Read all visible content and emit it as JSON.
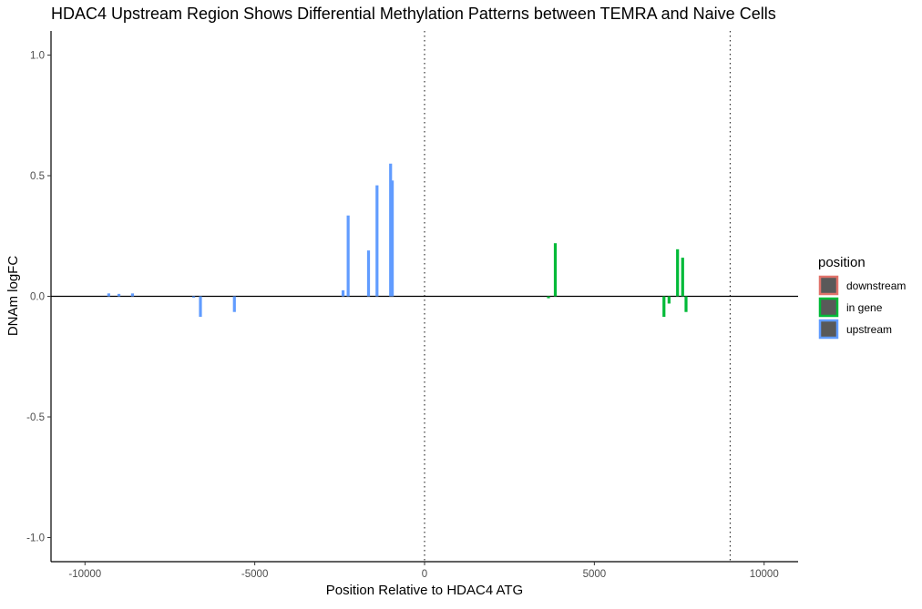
{
  "chart_data": {
    "type": "bar",
    "title": "HDAC4 Upstream Region Shows Differential Methylation Patterns between TEMRA and Naive Cells",
    "xlabel": "Position Relative to HDAC4 ATG",
    "ylabel": "DNAm logFC",
    "xlim": [
      -11000,
      11000
    ],
    "ylim": [
      -1.1,
      1.1
    ],
    "x_ticks": [
      -10000,
      -5000,
      0,
      5000,
      10000
    ],
    "x_tick_labels": [
      "-10000",
      "-5000",
      "0",
      "5000",
      "10000"
    ],
    "y_ticks": [
      1.0,
      0.5,
      0.0,
      -0.5,
      -1.0
    ],
    "y_tick_labels": [
      "1.0",
      "0.5",
      "0.0",
      "-0.5",
      "-1.0"
    ],
    "reference_lines": [
      0,
      9000
    ],
    "grid": false,
    "legend": {
      "title": "position",
      "placement": "right",
      "entries": [
        {
          "label": "downstream",
          "color": "#e0736b"
        },
        {
          "label": "in gene",
          "color": "#00ba38"
        },
        {
          "label": "upstream",
          "color": "#619cff"
        }
      ]
    },
    "series": [
      {
        "name": "upstream",
        "color": "#619cff",
        "points": [
          {
            "x": -9300,
            "y": 0.012
          },
          {
            "x": -9000,
            "y": 0.01
          },
          {
            "x": -8600,
            "y": 0.012
          },
          {
            "x": -6800,
            "y": -0.005
          },
          {
            "x": -6600,
            "y": -0.085
          },
          {
            "x": -5600,
            "y": -0.065
          },
          {
            "x": -2400,
            "y": 0.025
          },
          {
            "x": -2250,
            "y": 0.335
          },
          {
            "x": -1650,
            "y": 0.19
          },
          {
            "x": -1400,
            "y": 0.46
          },
          {
            "x": -1000,
            "y": 0.55
          },
          {
            "x": -950,
            "y": 0.48
          }
        ]
      },
      {
        "name": "in gene",
        "color": "#00ba38",
        "points": [
          {
            "x": 3650,
            "y": -0.008
          },
          {
            "x": 3850,
            "y": 0.22
          },
          {
            "x": 7050,
            "y": -0.085
          },
          {
            "x": 7200,
            "y": -0.03
          },
          {
            "x": 7450,
            "y": 0.195
          },
          {
            "x": 7600,
            "y": 0.16
          },
          {
            "x": 7700,
            "y": -0.065
          }
        ]
      },
      {
        "name": "downstream",
        "color": "#e0736b",
        "points": []
      }
    ]
  }
}
